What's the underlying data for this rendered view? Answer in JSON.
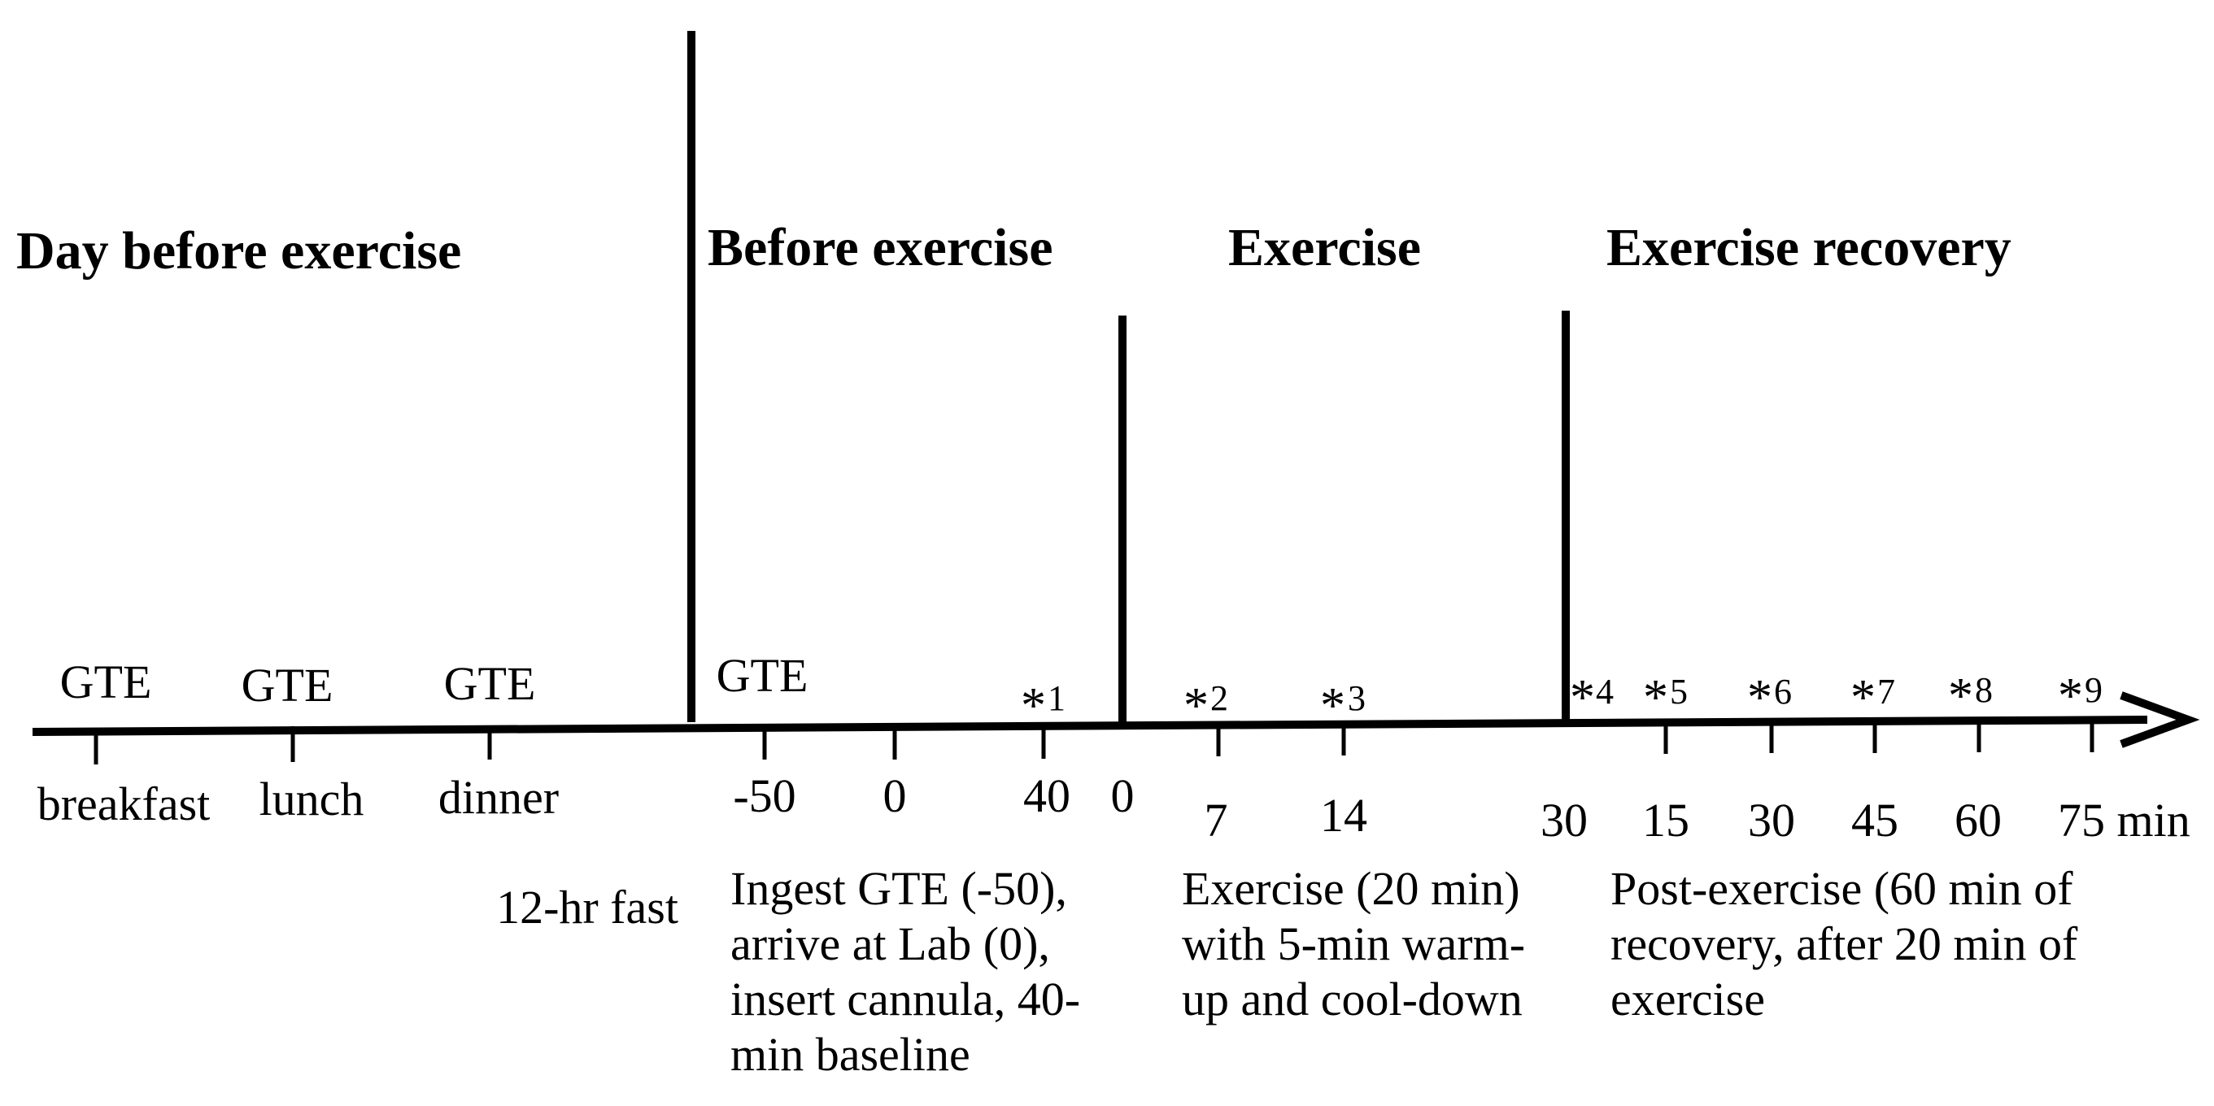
{
  "phases": {
    "day_before": "Day before exercise",
    "before": "Before exercise",
    "exercise": "Exercise",
    "recovery": "Exercise recovery"
  },
  "day_before": {
    "gte_1": "GTE",
    "gte_2": "GTE",
    "gte_3": "GTE",
    "breakfast": "breakfast",
    "lunch": "lunch",
    "dinner": "dinner",
    "fast": "12-hr fast"
  },
  "before": {
    "gte": "GTE",
    "tick_1": "-50",
    "tick_2": "0",
    "tick_3": "40",
    "sample_1": "1",
    "note_lines": [
      "Ingest GTE (-50),",
      "arrive at Lab (0),",
      "insert cannula, 40-",
      "min baseline"
    ]
  },
  "exercise": {
    "tick_0": "0",
    "tick_1": "7",
    "tick_2": "14",
    "sample_2": "2",
    "sample_3": "3",
    "note_lines": [
      "Exercise (20 min)",
      "with 5-min warm-",
      "up and cool-down"
    ]
  },
  "recovery": {
    "tick_0": "30",
    "tick_1": "15",
    "tick_2": "30",
    "tick_3": "45",
    "tick_4": "60",
    "tick_5": "75 min",
    "sample_4": "4",
    "sample_5": "5",
    "sample_6": "6",
    "sample_7": "7",
    "sample_8": "8",
    "sample_9": "9",
    "note_lines": [
      "Post-exercise (60 min of",
      "recovery, after 20 min of",
      "exercise"
    ]
  },
  "asterisk": "*"
}
